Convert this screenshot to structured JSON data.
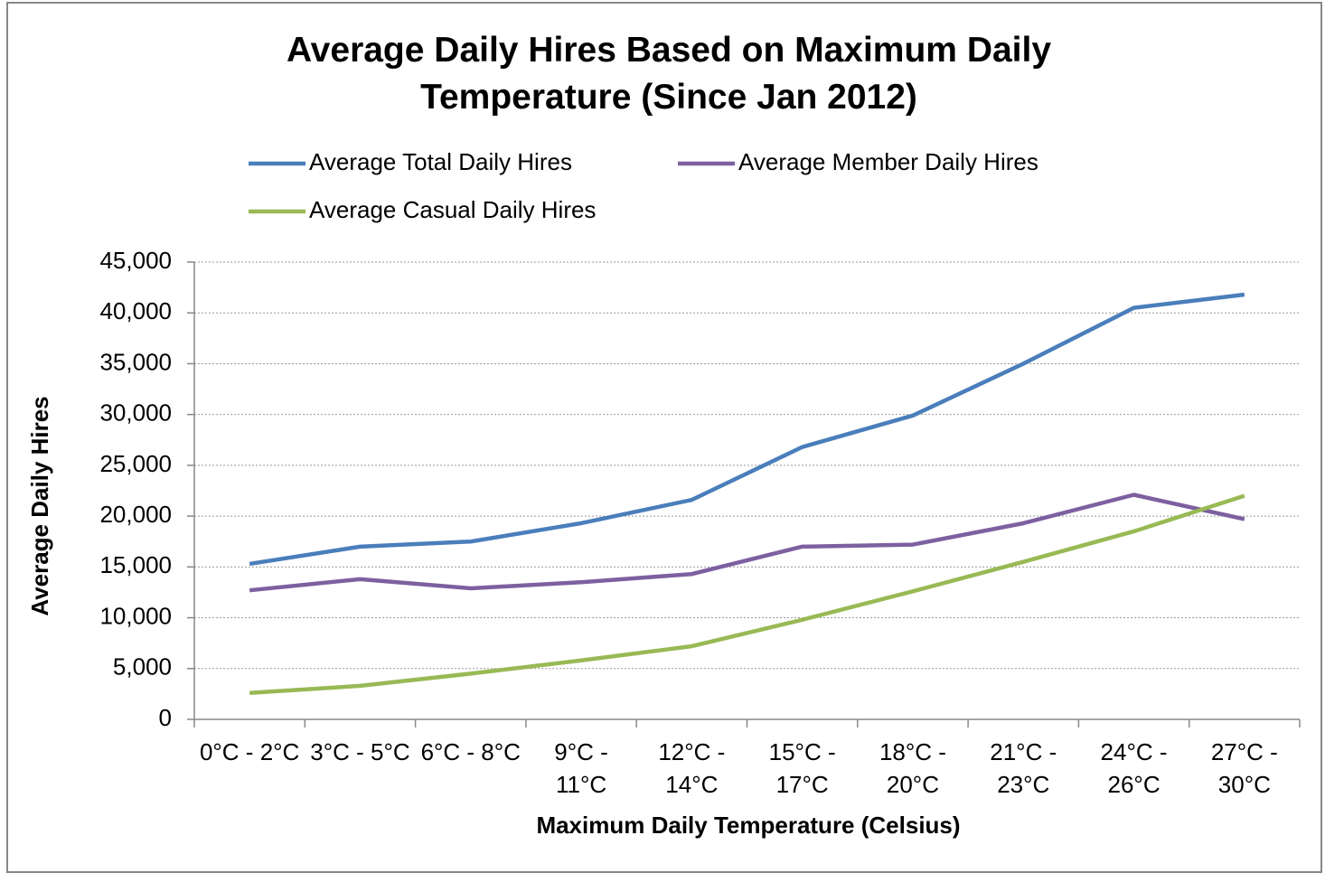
{
  "chart_data": {
    "type": "line",
    "title": "Average Daily Hires Based on Maximum Daily Temperature (Since Jan 2012)",
    "x_label": "Maximum Daily Temperature (Celsius)",
    "y_label": "Average Daily Hires",
    "categories": [
      "0°C - 2°C",
      "3°C - 5°C",
      "6°C - 8°C",
      "9°C - 11°C",
      "12°C - 14°C",
      "15°C - 17°C",
      "18°C - 20°C",
      "21°C - 23°C",
      "24°C - 26°C",
      "27°C - 30°C"
    ],
    "series": [
      {
        "name": "Average Total Daily Hires",
        "color": "#4a7ebb",
        "values": [
          15300,
          17000,
          17500,
          19300,
          21600,
          26800,
          29900,
          35000,
          40500,
          41800
        ]
      },
      {
        "name": "Average Member Daily Hires",
        "color": "#7d60a0",
        "values": [
          12700,
          13800,
          12900,
          13500,
          14300,
          17000,
          17200,
          19300,
          22100,
          19700
        ]
      },
      {
        "name": "Average Casual Daily Hires",
        "color": "#98b954",
        "values": [
          2600,
          3300,
          4500,
          5800,
          7200,
          9800,
          12600,
          15500,
          18500,
          22000
        ]
      }
    ],
    "ylim": [
      0,
      45000
    ],
    "yticks": [
      0,
      {
        "value": 5000,
        "label": "5,000"
      },
      {
        "value": 10000,
        "label": "10,000"
      },
      {
        "value": 15000,
        "label": "15,000"
      },
      {
        "value": 20000,
        "label": "20,000"
      },
      {
        "value": 25000,
        "label": "25,000"
      },
      {
        "value": 30000,
        "label": "30,000"
      },
      {
        "value": 35000,
        "label": "35,000"
      },
      {
        "value": 40000,
        "label": "40,000"
      },
      {
        "value": 45000,
        "label": "45,000"
      }
    ],
    "grid": true
  }
}
